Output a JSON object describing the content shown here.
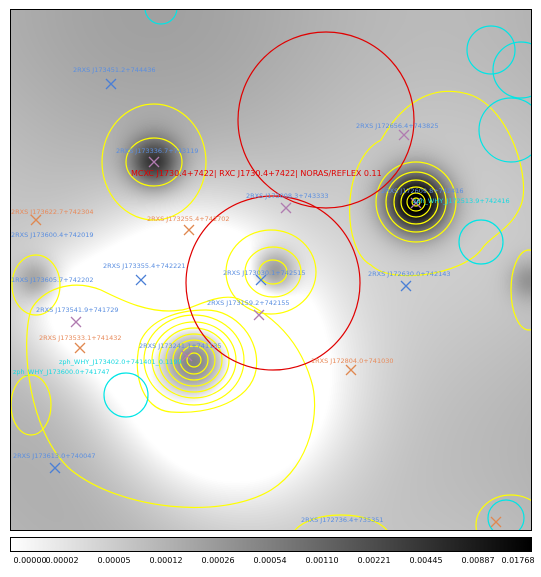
{
  "colors": {
    "contour": "#ffff00",
    "cluster_circle": "#e00000",
    "aperture_circle": "#00e5e5",
    "rass_marker": "#4a7fd6",
    "orange_marker": "#e08850",
    "grey_marker": "#b07bb0",
    "label_blue": "#5a8ee0",
    "label_orange": "#e88a5a",
    "label_red": "#e00000",
    "label_cyan": "#18d8e0"
  },
  "colorbar": {
    "ticks": [
      "0.00000",
      "0.00002",
      "0.00005",
      "0.00012",
      "0.00026",
      "0.00054",
      "0.00110",
      "0.00221",
      "0.00445",
      "0.00887",
      "0.01768"
    ]
  },
  "labels": {
    "cluster": "MCXC J1730.4+7422| RXC J1730.4+7422| NORAS/REFLEX 0.11",
    "src_top": "2RXS J173451.2+744436",
    "src_upper_right": "2RXS J172656.4+743825",
    "src_center_top": "2RXS J173008.3+743333",
    "src_left_peak": "2RXS J173336.7+743119",
    "src_left_mid": "2RXS J173355.4+742221",
    "src_mid2": "2RXS J173030.1+742515",
    "src_right2": "2RXS J172630.0+742143",
    "src_right_peak": "2RXS J172609.8+742416",
    "src_center3": "2RXS J173159.2+742155",
    "src_left3": "2RXS J173541.9+741729",
    "src_left4": "2RXS J173533.1+741432",
    "src_peak": "2RXS J173241.1+741135",
    "src_lower_right": "1RXS J172804.0+741030",
    "src_bottom_left": "2RXS J173613.0+740047",
    "src_bottom": "2RXS J172736.4+735351",
    "src_topcenter2": "2RXS J173255.4+742702",
    "zph_left": "zph_WHY_J173402.0+741401_0.1199",
    "zph_left2": "zph_WHY_J173600.0+741747",
    "zph_right": "zph_WHY_J172513.9+742416",
    "src_left_edge": "2RXS J173622.7+742304",
    "src_left_edge2": "2RXS J173600.4+742019",
    "src_left_edge3": "1RXS J173605.7+742202"
  }
}
